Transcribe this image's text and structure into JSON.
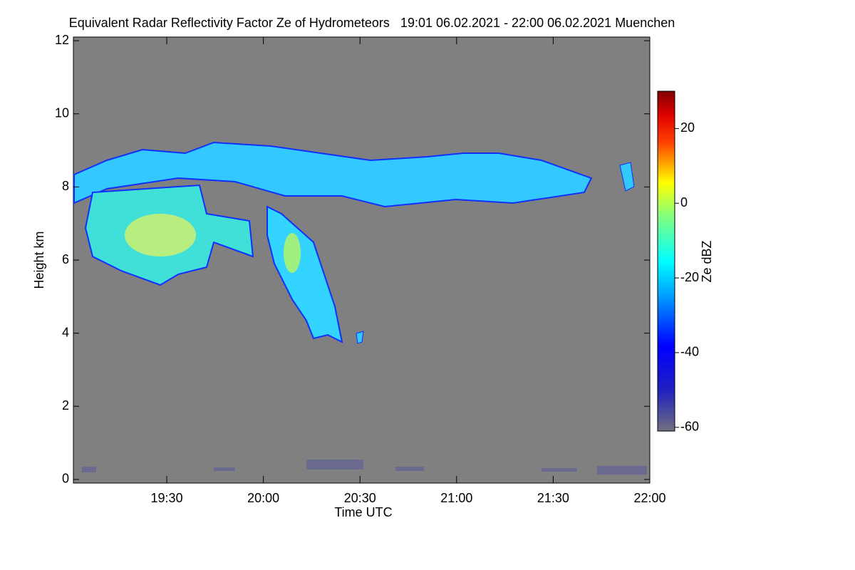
{
  "chart_data": {
    "type": "heatmap",
    "title": "Equivalent Radar Reflectivity Factor Ze of Hydrometeors   19:01 06.02.2021 - 22:00 06.02.2021 Muenchen",
    "x_label": "Time UTC",
    "y_label": "Height km",
    "colorbar_label": "Ze dBZ",
    "xlim": [
      "19:01",
      "22:00"
    ],
    "xticks": [
      "19:30",
      "20:00",
      "20:30",
      "21:00",
      "21:30",
      "22:00"
    ],
    "ylim": [
      -0.1,
      12.1
    ],
    "yticks": [
      0,
      2,
      4,
      6,
      8,
      10,
      12
    ],
    "zlim": [
      -61,
      30
    ],
    "zticks": [
      -60,
      -40,
      -20,
      0,
      20
    ],
    "colormap": "jet",
    "background": "#808080"
  }
}
